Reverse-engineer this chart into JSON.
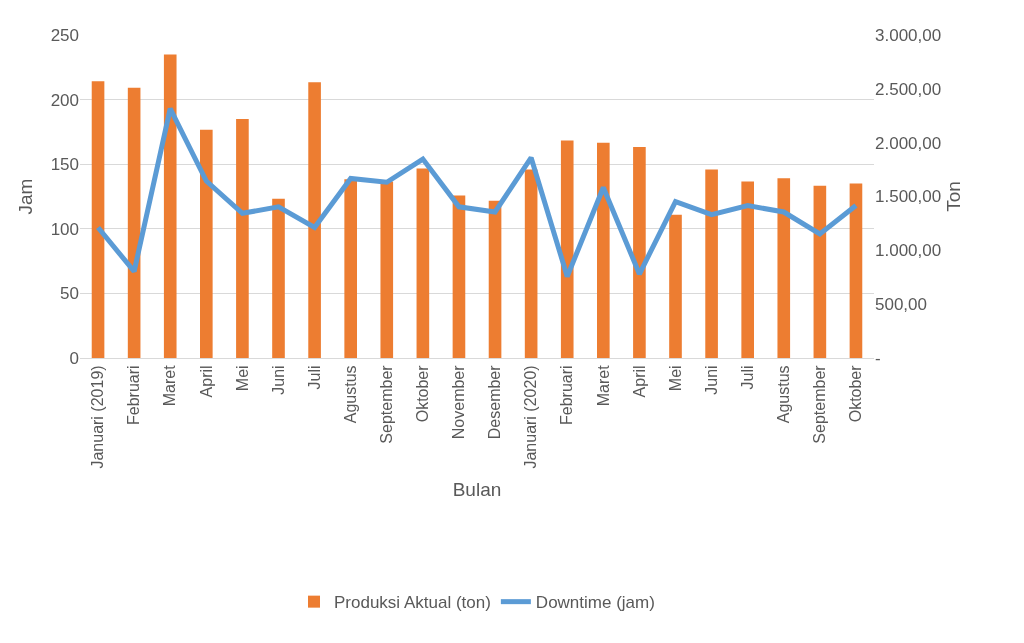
{
  "chart_data": {
    "type": "bar",
    "xlabel": "Bulan",
    "ylabel": "Jam",
    "y2label": "Ton",
    "categories": [
      "Januari (2019)",
      "Februari",
      "Maret",
      "April",
      "Mei",
      "Juni",
      "Juli",
      "Agustus",
      "September",
      "Oktober",
      "November",
      "Desember",
      "Januari (2020)",
      "Februari",
      "Maret",
      "April",
      "Mei",
      "Juni",
      "Juli",
      "Agustus",
      "September",
      "Oktober"
    ],
    "series": [
      {
        "name": "Produksi Aktual (ton)",
        "axis": "y2",
        "color": "#ed7d31",
        "values": [
          2570,
          2510,
          2820,
          2120,
          2220,
          1480,
          2560,
          1660,
          1640,
          1760,
          1510,
          1460,
          1750,
          2020,
          2000,
          1960,
          1330,
          1750,
          1640,
          1670,
          1600,
          1620
        ]
      },
      {
        "name": "Downtime (jam)",
        "type": "line",
        "axis": "y",
        "color": "#5b9bd5",
        "values": [
          101,
          67,
          193,
          137,
          112,
          117,
          101,
          139,
          136,
          154,
          117,
          113,
          155,
          63,
          132,
          65,
          121,
          111,
          118,
          113,
          96,
          118
        ]
      }
    ],
    "ylim": [
      0,
      250
    ],
    "yticks": [
      0,
      50,
      100,
      150,
      200,
      250
    ],
    "y2lim": [
      0,
      3000
    ],
    "y2ticks": [
      {
        "value": 0,
        "label": "-"
      },
      {
        "value": 500,
        "label": "500,00"
      },
      {
        "value": 1000,
        "label": "1.000,00"
      },
      {
        "value": 1500,
        "label": "1.500,00"
      },
      {
        "value": 2000,
        "label": "2.000,00"
      },
      {
        "value": 2500,
        "label": "2.500,00"
      },
      {
        "value": 3000,
        "label": "3.000,00"
      }
    ],
    "grid": "y",
    "legend": "bottom",
    "marker": "none",
    "line_style": "solid"
  }
}
